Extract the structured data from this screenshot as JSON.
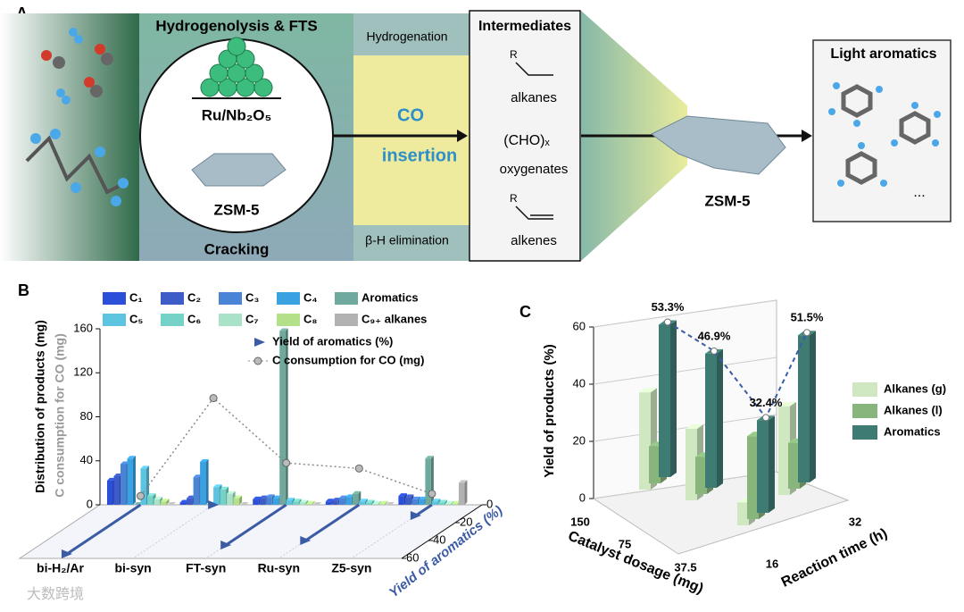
{
  "panel_a": {
    "panel_label": "A",
    "stage1_title": "Hydrogenolysis & FTS",
    "catalyst1": "Ru/Nb₂O₅",
    "catalyst2": "ZSM-5",
    "stage1_bottom": "Cracking",
    "path_top": "Hydrogenation",
    "path_mid_1": "CO",
    "path_mid_2": "insertion",
    "path_bottom": "β-H elimination",
    "intermediates_title": "Intermediates",
    "r_group_1": "R",
    "intermediate_1": "alkanes",
    "intermediate_2_formula": "(CHO)ₓ",
    "intermediate_2": "oxygenates",
    "r_group_2": "R",
    "intermediate_3": "alkenes",
    "zeolite": "ZSM-5",
    "product_title": "Light aromatics",
    "product_more": "..."
  },
  "watermark": "大数跨境",
  "chart_data": [
    {
      "type": "bar3d",
      "panel_label": "B",
      "categories": [
        "bi-H₂/Ar",
        "bi-syn",
        "FT-syn",
        "Ru-syn",
        "Z5-syn"
      ],
      "series": [
        {
          "name": "C₁",
          "color": "#2b4fd8",
          "values": [
            22,
            2,
            5,
            3,
            8
          ]
        },
        {
          "name": "C₂",
          "color": "#3d5cc8",
          "values": [
            26,
            6,
            6,
            4,
            7
          ]
        },
        {
          "name": "C₃",
          "color": "#4a84d6",
          "values": [
            37,
            25,
            7,
            6,
            5
          ]
        },
        {
          "name": "C₄",
          "color": "#3ba2e2",
          "values": [
            42,
            39,
            6,
            7,
            5
          ]
        },
        {
          "name": "Aromatics",
          "color": "#6fa89c",
          "values": [
            0,
            0,
            158,
            10,
            42
          ]
        },
        {
          "name": "C₅",
          "color": "#5cc3e0",
          "values": [
            33,
            16,
            4,
            3,
            3
          ]
        },
        {
          "name": "C₆",
          "color": "#74d2c6",
          "values": [
            8,
            14,
            3,
            2,
            2
          ]
        },
        {
          "name": "C₇",
          "color": "#a9e2c6",
          "values": [
            5,
            10,
            2,
            1,
            1
          ]
        },
        {
          "name": "C₈",
          "color": "#b4e08a",
          "values": [
            3,
            6,
            1,
            1,
            1
          ]
        },
        {
          "name": "C₉₊ alkanes",
          "color": "#b2b2b2",
          "values": [
            0,
            0,
            0,
            0,
            20
          ]
        }
      ],
      "ylim": [
        0,
        160
      ],
      "yticks": [
        0,
        40,
        80,
        120,
        160
      ],
      "y_label": "Distribution of products (mg)",
      "y2_label": "C consumption for CO (mg)",
      "yield": {
        "name": "Yield of aromatics (%)",
        "color": "#3b5ba5",
        "values": [
          55,
          0,
          45,
          40,
          12
        ]
      },
      "co": {
        "name": "C consumption for CO (mg)",
        "color": "#8a8a8a",
        "values": [
          8,
          97,
          38,
          33,
          10
        ]
      },
      "depth_label": "Yield of aromatics (%)",
      "depth_lim": [
        0,
        60
      ],
      "depth_ticks": [
        0,
        20,
        40,
        60
      ]
    },
    {
      "type": "bar3d",
      "panel_label": "C",
      "series": [
        {
          "name": "Alkanes (g)",
          "color": "#cfe8c2",
          "values": [
            34,
            25,
            8,
            31
          ]
        },
        {
          "name": "Alkanes (l)",
          "color": "#88b57b",
          "values": [
            13,
            13,
            29,
            16
          ]
        },
        {
          "name": "Aromatics",
          "color": "#3e7b73",
          "values": [
            53.3,
            46.9,
            32.4,
            51.5
          ],
          "value_labels": [
            "53.3%",
            "46.9%",
            "32.4%",
            "51.5%"
          ]
        }
      ],
      "ylim": [
        0,
        60
      ],
      "yticks": [
        0,
        20,
        40,
        60
      ],
      "y_label": "Yield of products (%)",
      "x_label": "Catalyst dosage (mg)",
      "x_ticks": [
        150,
        75,
        37.5
      ],
      "z_label": "Reaction time (h)",
      "z_ticks": [
        16,
        32
      ]
    }
  ]
}
